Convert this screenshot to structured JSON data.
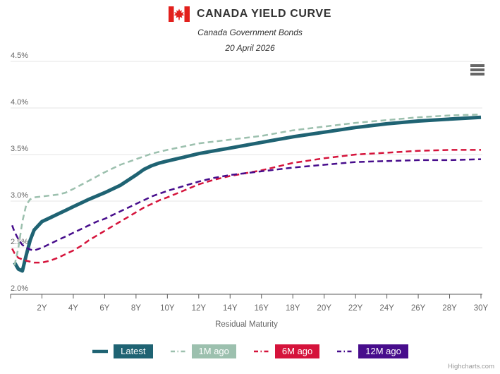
{
  "header": {
    "title": "CANADA YIELD CURVE",
    "subtitle": "Canada Government Bonds",
    "date": "20 April 2026",
    "flag_icon": "canada-flag-icon"
  },
  "menu_icon": "hamburger-menu-icon",
  "credit": {
    "text": "Highcharts.com"
  },
  "colors": {
    "latest": "#1f6373",
    "one_month": "#9cc0ae",
    "six_month": "#d5133b",
    "twelve_month": "#470d8c",
    "grid": "#e6e6e6",
    "axis": "#5a5a5a",
    "tick_label": "#666666",
    "flag_red": "#e2201c"
  },
  "chart_data": {
    "type": "line",
    "title": "CANADA YIELD CURVE",
    "subtitle": "Canada Government Bonds",
    "date_label": "20 April 2026",
    "xlabel": "Residual Maturity",
    "ylabel": "",
    "xlim": [
      0,
      30
    ],
    "ylim": [
      2.0,
      4.5
    ],
    "grid": true,
    "legend_position": "bottom",
    "y_ticks": [
      {
        "value": 2.0,
        "label": "2.0%"
      },
      {
        "value": 2.5,
        "label": "2.5%"
      },
      {
        "value": 3.0,
        "label": "3.0%"
      },
      {
        "value": 3.5,
        "label": "3.5%"
      },
      {
        "value": 4.0,
        "label": "4.0%"
      },
      {
        "value": 4.5,
        "label": "4.5%"
      }
    ],
    "x_ticks": [
      {
        "value": 2,
        "label": "2Y"
      },
      {
        "value": 4,
        "label": "4Y"
      },
      {
        "value": 6,
        "label": "6Y"
      },
      {
        "value": 8,
        "label": "8Y"
      },
      {
        "value": 10,
        "label": "10Y"
      },
      {
        "value": 12,
        "label": "12Y"
      },
      {
        "value": 14,
        "label": "14Y"
      },
      {
        "value": 16,
        "label": "16Y"
      },
      {
        "value": 18,
        "label": "18Y"
      },
      {
        "value": 20,
        "label": "20Y"
      },
      {
        "value": 22,
        "label": "22Y"
      },
      {
        "value": 24,
        "label": "24Y"
      },
      {
        "value": 26,
        "label": "26Y"
      },
      {
        "value": 28,
        "label": "28Y"
      },
      {
        "value": 30,
        "label": "30Y"
      }
    ],
    "series": [
      {
        "name": "Latest",
        "color": "#1f6373",
        "dash": "solid",
        "width": 5,
        "points": [
          [
            0.25,
            2.34
          ],
          [
            0.5,
            2.27
          ],
          [
            0.75,
            2.25
          ],
          [
            1,
            2.42
          ],
          [
            1.25,
            2.58
          ],
          [
            1.5,
            2.69
          ],
          [
            2,
            2.78
          ],
          [
            2.5,
            2.82
          ],
          [
            3,
            2.86
          ],
          [
            3.5,
            2.9
          ],
          [
            4,
            2.94
          ],
          [
            4.5,
            2.98
          ],
          [
            5,
            3.02
          ],
          [
            6,
            3.09
          ],
          [
            7,
            3.17
          ],
          [
            8,
            3.28
          ],
          [
            8.5,
            3.34
          ],
          [
            9,
            3.38
          ],
          [
            9.5,
            3.41
          ],
          [
            10,
            3.43
          ],
          [
            11,
            3.47
          ],
          [
            12,
            3.51
          ],
          [
            13,
            3.54
          ],
          [
            14,
            3.57
          ],
          [
            15,
            3.6
          ],
          [
            16,
            3.63
          ],
          [
            18,
            3.69
          ],
          [
            20,
            3.74
          ],
          [
            22,
            3.79
          ],
          [
            24,
            3.83
          ],
          [
            26,
            3.86
          ],
          [
            28,
            3.88
          ],
          [
            30,
            3.9
          ]
        ]
      },
      {
        "name": "1M ago",
        "color": "#9cc0ae",
        "dash": "dashed",
        "width": 2.5,
        "points": [
          [
            0.25,
            2.31
          ],
          [
            0.5,
            2.5
          ],
          [
            0.75,
            2.78
          ],
          [
            1,
            2.96
          ],
          [
            1.25,
            3.02
          ],
          [
            1.5,
            3.04
          ],
          [
            2,
            3.05
          ],
          [
            2.5,
            3.06
          ],
          [
            3,
            3.07
          ],
          [
            3.5,
            3.09
          ],
          [
            4,
            3.13
          ],
          [
            5,
            3.22
          ],
          [
            6,
            3.31
          ],
          [
            7,
            3.39
          ],
          [
            8,
            3.45
          ],
          [
            9,
            3.51
          ],
          [
            10,
            3.55
          ],
          [
            12,
            3.62
          ],
          [
            14,
            3.66
          ],
          [
            16,
            3.7
          ],
          [
            18,
            3.76
          ],
          [
            20,
            3.8
          ],
          [
            22,
            3.84
          ],
          [
            24,
            3.87
          ],
          [
            26,
            3.9
          ],
          [
            28,
            3.92
          ],
          [
            30,
            3.93
          ]
        ]
      },
      {
        "name": "6M ago",
        "color": "#d5133b",
        "dash": "dashed",
        "width": 2.5,
        "points": [
          [
            0.1,
            2.49
          ],
          [
            0.25,
            2.44
          ],
          [
            0.5,
            2.39
          ],
          [
            1,
            2.36
          ],
          [
            1.5,
            2.34
          ],
          [
            2,
            2.34
          ],
          [
            2.5,
            2.36
          ],
          [
            3,
            2.39
          ],
          [
            3.5,
            2.43
          ],
          [
            4,
            2.47
          ],
          [
            4.5,
            2.52
          ],
          [
            5,
            2.58
          ],
          [
            5.5,
            2.63
          ],
          [
            6,
            2.68
          ],
          [
            6.5,
            2.73
          ],
          [
            7,
            2.78
          ],
          [
            7.5,
            2.83
          ],
          [
            8,
            2.88
          ],
          [
            8.5,
            2.93
          ],
          [
            9,
            2.97
          ],
          [
            9.5,
            3.01
          ],
          [
            10,
            3.04
          ],
          [
            11,
            3.11
          ],
          [
            12,
            3.18
          ],
          [
            13,
            3.23
          ],
          [
            14,
            3.27
          ],
          [
            15,
            3.3
          ],
          [
            16,
            3.33
          ],
          [
            18,
            3.41
          ],
          [
            20,
            3.46
          ],
          [
            22,
            3.5
          ],
          [
            24,
            3.52
          ],
          [
            26,
            3.54
          ],
          [
            28,
            3.55
          ],
          [
            30,
            3.55
          ]
        ]
      },
      {
        "name": "12M ago",
        "color": "#470d8c",
        "dash": "dashed",
        "width": 2.5,
        "points": [
          [
            0.1,
            2.74
          ],
          [
            0.25,
            2.67
          ],
          [
            0.5,
            2.59
          ],
          [
            0.75,
            2.53
          ],
          [
            1,
            2.5
          ],
          [
            1.25,
            2.48
          ],
          [
            1.5,
            2.47
          ],
          [
            2,
            2.5
          ],
          [
            2.5,
            2.54
          ],
          [
            3,
            2.58
          ],
          [
            3.5,
            2.62
          ],
          [
            4,
            2.66
          ],
          [
            4.5,
            2.7
          ],
          [
            5,
            2.74
          ],
          [
            5.5,
            2.78
          ],
          [
            6,
            2.81
          ],
          [
            6.5,
            2.85
          ],
          [
            7,
            2.89
          ],
          [
            7.5,
            2.93
          ],
          [
            8,
            2.97
          ],
          [
            8.5,
            3.01
          ],
          [
            9,
            3.05
          ],
          [
            9.5,
            3.08
          ],
          [
            10,
            3.11
          ],
          [
            11,
            3.16
          ],
          [
            12,
            3.21
          ],
          [
            13,
            3.25
          ],
          [
            14,
            3.28
          ],
          [
            15,
            3.3
          ],
          [
            16,
            3.32
          ],
          [
            18,
            3.36
          ],
          [
            20,
            3.39
          ],
          [
            22,
            3.42
          ],
          [
            24,
            3.43
          ],
          [
            26,
            3.44
          ],
          [
            28,
            3.44
          ],
          [
            30,
            3.45
          ]
        ]
      }
    ]
  }
}
